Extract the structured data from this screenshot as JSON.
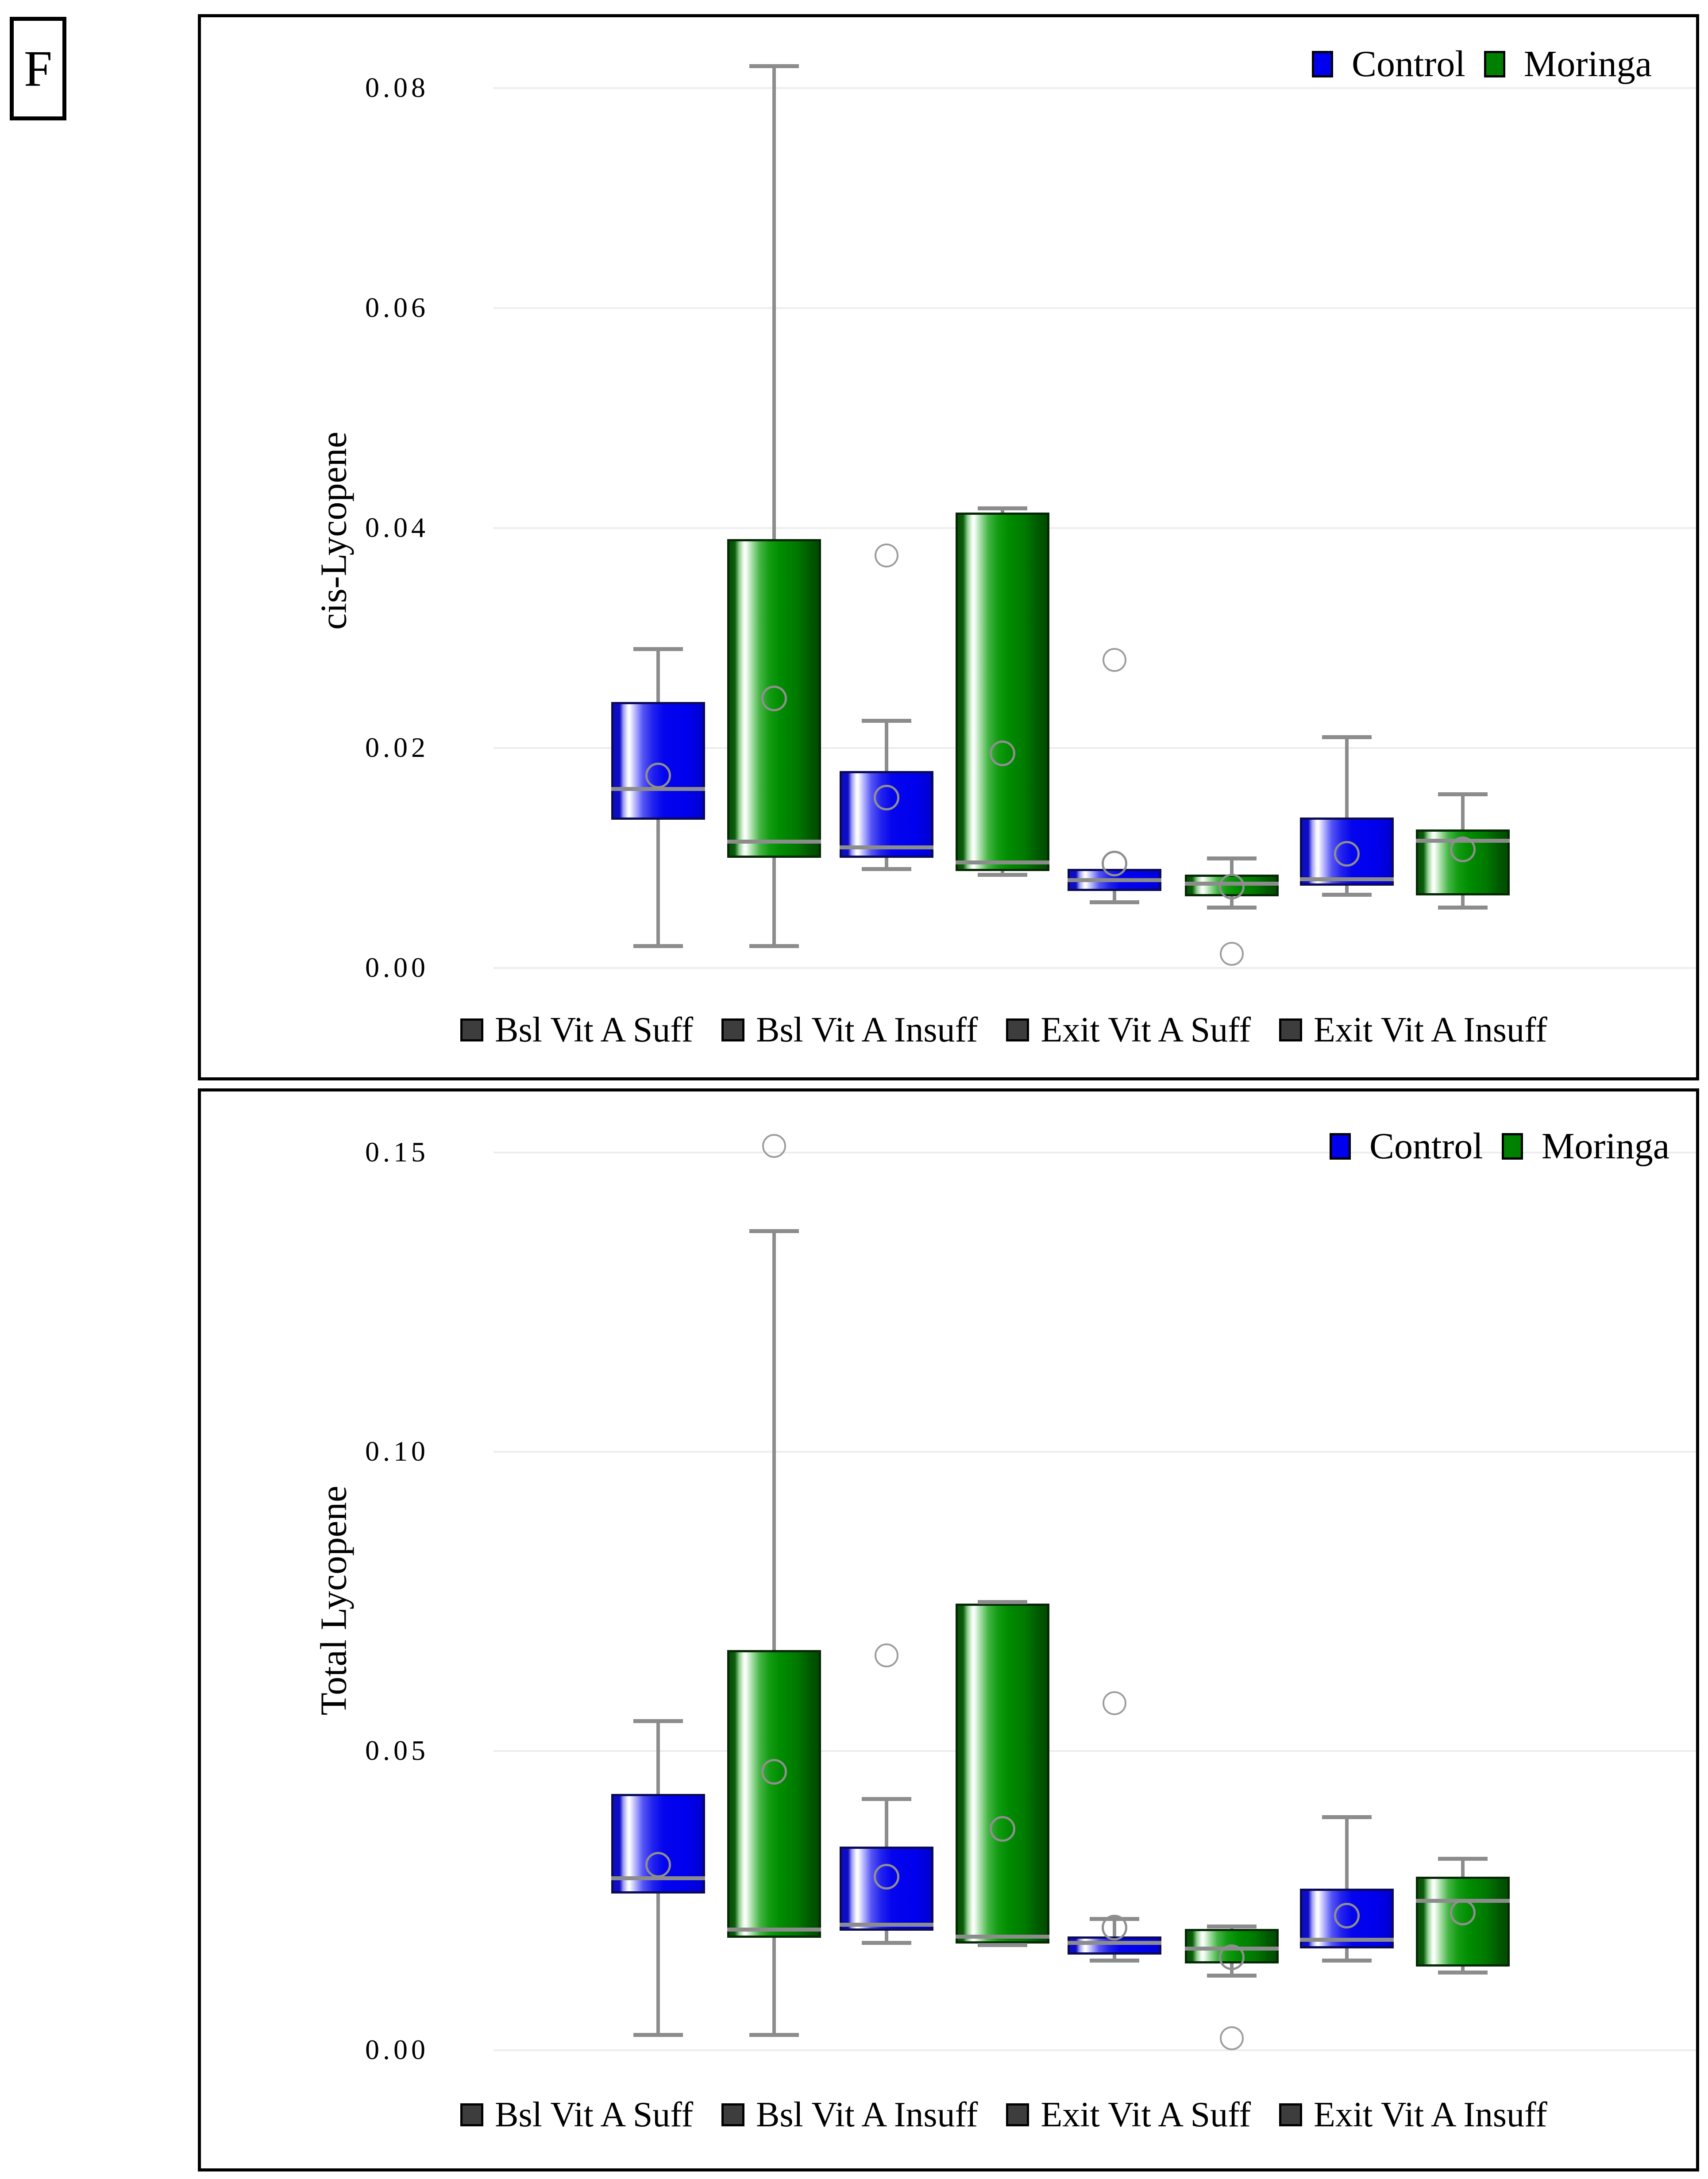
{
  "figure_label": "F",
  "colors": {
    "control": "#0000ee",
    "moringa": "#008000",
    "legend_control_swatch": "#0000ff",
    "legend_moringa_swatch": "#008000",
    "category_swatch": "#3d3d3d",
    "whisker_gray": "#8c8c8c",
    "gridline": "#ededed"
  },
  "chart_data": [
    {
      "type": "box",
      "title": "",
      "xlabel": "",
      "ylabel": "cis-Lycopene",
      "grid": true,
      "legend_position": "top-right",
      "ylim": [
        -0.0015,
        0.087
      ],
      "y_ticks": [
        "0.00",
        "0.02",
        "0.04",
        "0.06",
        "0.08"
      ],
      "categories": [
        "Bsl Vit A Suff",
        "Bsl Vit A Insuff",
        "Exit Vit A Suff",
        "Exit Vit A Insuff"
      ],
      "series": [
        {
          "name": "Control",
          "color": "#0000ee",
          "boxes": [
            {
              "q1": 0.0135,
              "median": 0.0163,
              "q3": 0.0242,
              "mean": 0.0175,
              "whisker_low": 0.002,
              "whisker_high": 0.029,
              "outliers": []
            },
            {
              "q1": 0.01,
              "median": 0.011,
              "q3": 0.0179,
              "mean": 0.0155,
              "whisker_low": 0.009,
              "whisker_high": 0.0225,
              "outliers": [
                0.0375
              ]
            },
            {
              "q1": 0.007,
              "median": 0.008,
              "q3": 0.009,
              "mean": 0.0095,
              "whisker_low": 0.006,
              "whisker_high": null,
              "outliers": [
                0.028
              ]
            },
            {
              "q1": 0.0075,
              "median": 0.0081,
              "q3": 0.0137,
              "mean": 0.0104,
              "whisker_low": 0.0067,
              "whisker_high": 0.021,
              "outliers": []
            }
          ]
        },
        {
          "name": "Moringa",
          "color": "#008000",
          "boxes": [
            {
              "q1": 0.01,
              "median": 0.0115,
              "q3": 0.039,
              "mean": 0.0245,
              "whisker_low": 0.002,
              "whisker_high": 0.082,
              "outliers": []
            },
            {
              "q1": 0.0088,
              "median": 0.0096,
              "q3": 0.0414,
              "mean": 0.0195,
              "whisker_low": 0.0085,
              "whisker_high": 0.0418,
              "outliers": []
            },
            {
              "q1": 0.0065,
              "median": 0.0077,
              "q3": 0.0085,
              "mean": 0.0074,
              "whisker_low": 0.0055,
              "whisker_high": 0.01,
              "outliers": [
                0.0013
              ]
            },
            {
              "q1": 0.0066,
              "median": 0.0116,
              "q3": 0.0126,
              "mean": 0.0108,
              "whisker_low": 0.0055,
              "whisker_high": 0.0158,
              "outliers": []
            }
          ]
        }
      ]
    },
    {
      "type": "box",
      "title": "",
      "xlabel": "",
      "ylabel": "Total Lycopene",
      "grid": true,
      "legend_position": "top-right",
      "ylim": [
        -0.004,
        0.158
      ],
      "y_ticks": [
        "0.00",
        "0.05",
        "0.10",
        "0.15"
      ],
      "categories": [
        "Bsl Vit A Suff",
        "Bsl Vit A Insuff",
        "Exit Vit A Suff",
        "Exit Vit A Insuff"
      ],
      "series": [
        {
          "name": "Control",
          "color": "#0000ee",
          "boxes": [
            {
              "q1": 0.0262,
              "median": 0.0288,
              "q3": 0.0428,
              "mean": 0.031,
              "whisker_low": 0.0026,
              "whisker_high": 0.055,
              "outliers": []
            },
            {
              "q1": 0.02,
              "median": 0.021,
              "q3": 0.034,
              "mean": 0.029,
              "whisker_low": 0.018,
              "whisker_high": 0.042,
              "outliers": [
                0.066
              ]
            },
            {
              "q1": 0.016,
              "median": 0.018,
              "q3": 0.019,
              "mean": 0.0205,
              "whisker_low": 0.015,
              "whisker_high": 0.022,
              "outliers": [
                0.058
              ]
            },
            {
              "q1": 0.017,
              "median": 0.0185,
              "q3": 0.027,
              "mean": 0.0225,
              "whisker_low": 0.015,
              "whisker_high": 0.039,
              "outliers": []
            }
          ]
        },
        {
          "name": "Moringa",
          "color": "#008000",
          "boxes": [
            {
              "q1": 0.0188,
              "median": 0.0202,
              "q3": 0.0669,
              "mean": 0.0465,
              "whisker_low": 0.0026,
              "whisker_high": 0.1369,
              "outliers": [
                0.1511
              ]
            },
            {
              "q1": 0.0178,
              "median": 0.019,
              "q3": 0.0746,
              "mean": 0.037,
              "whisker_low": 0.0176,
              "whisker_high": 0.0749,
              "outliers": []
            },
            {
              "q1": 0.0145,
              "median": 0.017,
              "q3": 0.0203,
              "mean": 0.0155,
              "whisker_low": 0.0125,
              "whisker_high": 0.0207,
              "outliers": [
                0.002
              ]
            },
            {
              "q1": 0.014,
              "median": 0.025,
              "q3": 0.029,
              "mean": 0.023,
              "whisker_low": 0.013,
              "whisker_high": 0.032,
              "outliers": []
            }
          ]
        }
      ]
    }
  ]
}
